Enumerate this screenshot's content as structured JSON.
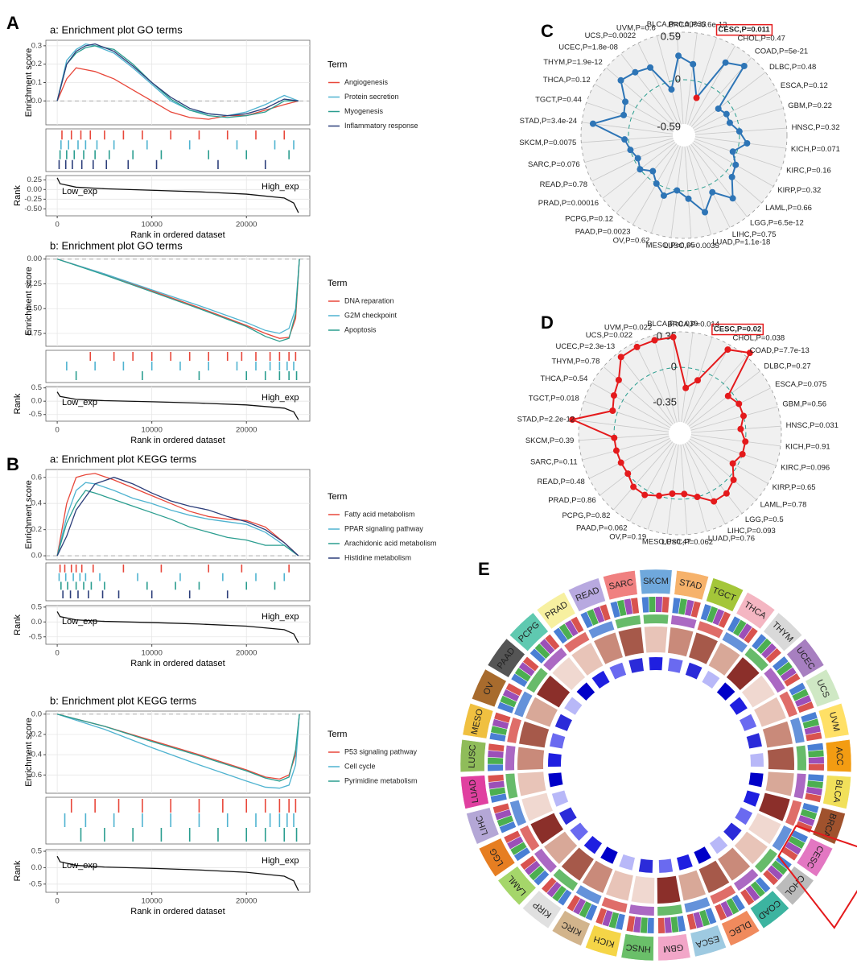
{
  "panels": [
    "A",
    "B",
    "C",
    "D",
    "E"
  ],
  "chart_data": [
    {
      "type": "gsea",
      "title": "a: Enrichment plot GO terms",
      "ylabel": "Enrichment score",
      "xlabel": "Rank in ordered dataset",
      "legend_title": "Term",
      "rank_ylabel": "Rank",
      "low_label": "Low_exp",
      "high_label": "High_exp",
      "xlim": [
        -1200,
        26700
      ],
      "xticks": [
        0,
        10000,
        20000
      ],
      "ylim": [
        -0.13,
        0.33
      ],
      "yticks": [
        {
          "value": 0,
          "label": "0.0"
        },
        0.1,
        0.2,
        0.3
      ],
      "x": [
        0,
        1000,
        2000,
        3000,
        4000,
        6000,
        8000,
        10000,
        12000,
        14000,
        16000,
        18000,
        20000,
        22000,
        24000,
        25500
      ],
      "series": [
        {
          "name": "Angiogenesis",
          "color": "#e8473a",
          "values": [
            0,
            0.12,
            0.18,
            0.17,
            0.16,
            0.12,
            0.06,
            0.0,
            -0.06,
            -0.09,
            -0.1,
            -0.08,
            -0.08,
            -0.05,
            -0.02,
            0
          ],
          "hits": [
            500,
            1500,
            2500,
            3500,
            5000,
            7000,
            9000,
            12000,
            15000,
            18000,
            21000,
            24000
          ]
        },
        {
          "name": "Protein secretion",
          "color": "#4fb3d0",
          "values": [
            0,
            0.22,
            0.28,
            0.31,
            0.3,
            0.26,
            0.18,
            0.09,
            0.0,
            -0.05,
            -0.07,
            -0.08,
            -0.06,
            -0.02,
            0.03,
            0
          ],
          "hits": [
            400,
            1200,
            2200,
            3000,
            4200,
            6000,
            9500,
            14000,
            19000,
            23000,
            25000
          ]
        },
        {
          "name": "Myogenesis",
          "color": "#2a9d8f",
          "values": [
            0,
            0.2,
            0.26,
            0.29,
            0.3,
            0.28,
            0.2,
            0.1,
            0.01,
            -0.05,
            -0.08,
            -0.09,
            -0.08,
            -0.06,
            0.0,
            0
          ],
          "hits": [
            300,
            1000,
            1800,
            2800,
            4000,
            5500,
            8000,
            11000,
            16000,
            20000,
            24500
          ]
        },
        {
          "name": "Inflammatory response",
          "color": "#2c3e7a",
          "values": [
            0,
            0.2,
            0.27,
            0.3,
            0.31,
            0.27,
            0.19,
            0.1,
            0.02,
            -0.04,
            -0.07,
            -0.08,
            -0.07,
            -0.04,
            0.01,
            0
          ],
          "hits": [
            200,
            900,
            1600,
            2600,
            3800,
            5200,
            7500,
            10500,
            17000,
            22000
          ]
        }
      ],
      "rank_x": [
        0,
        300,
        2000,
        5000,
        10000,
        15000,
        20000,
        24000,
        25000,
        25500
      ],
      "rank_values": [
        0.3,
        0.15,
        0.06,
        0.02,
        -0.02,
        -0.06,
        -0.12,
        -0.22,
        -0.35,
        -0.6
      ],
      "rank_ylim": [
        -0.68,
        0.36
      ],
      "rank_yticks": [
        0.25,
        {
          "value": 0,
          "label": "0.00"
        },
        -0.25,
        {
          "value": -0.5,
          "label": "-0.50"
        }
      ]
    },
    {
      "type": "gsea",
      "title": "b: Enrichment plot GO terms",
      "ylabel": "Enrichment score",
      "xlabel": "Rank in ordered dataset",
      "legend_title": "Term",
      "rank_ylabel": "Rank",
      "low_label": "Low_exp",
      "high_label": "High_exp",
      "xlim": [
        -1200,
        26700
      ],
      "xticks": [
        0,
        10000,
        20000
      ],
      "ylim": [
        -0.88,
        0.03
      ],
      "yticks": [
        {
          "value": 0,
          "label": "0.00"
        },
        -0.25,
        {
          "value": -0.5,
          "label": "-0.50"
        },
        -0.75
      ],
      "x": [
        0,
        5000,
        10000,
        15000,
        20000,
        22000,
        23500,
        24500,
        25200,
        25600
      ],
      "series": [
        {
          "name": "DNA reparation",
          "color": "#e8473a",
          "values": [
            0,
            -0.15,
            -0.32,
            -0.49,
            -0.67,
            -0.75,
            -0.8,
            -0.79,
            -0.6,
            0
          ],
          "hits": [
            3500,
            6000,
            8000,
            10000,
            12000,
            14000,
            16000,
            18000,
            19500,
            21000,
            22500,
            23500,
            24500,
            25200
          ]
        },
        {
          "name": "G2M checkpoint",
          "color": "#4fb3d0",
          "values": [
            0,
            -0.15,
            -0.31,
            -0.47,
            -0.64,
            -0.72,
            -0.75,
            -0.7,
            -0.5,
            0
          ],
          "hits": [
            1000,
            4000,
            7000,
            10000,
            13000,
            16000,
            19000,
            21000,
            22500,
            23500,
            24300,
            25000
          ]
        },
        {
          "name": "Apoptosis",
          "color": "#2a9d8f",
          "values": [
            0,
            -0.16,
            -0.33,
            -0.5,
            -0.68,
            -0.78,
            -0.83,
            -0.8,
            -0.55,
            0
          ],
          "hits": [
            2000,
            9000,
            15000,
            20000,
            22000,
            23500,
            24500,
            25300
          ]
        }
      ],
      "rank_x": [
        0,
        300,
        2000,
        5000,
        10000,
        15000,
        20000,
        24000,
        25000,
        25500
      ],
      "rank_values": [
        0.35,
        0.18,
        0.07,
        0.02,
        -0.02,
        -0.07,
        -0.14,
        -0.26,
        -0.4,
        -0.7
      ],
      "rank_ylim": [
        -0.75,
        0.55
      ],
      "rank_yticks": [
        0.5,
        {
          "value": 0,
          "label": "0.0"
        },
        -0.5
      ]
    },
    {
      "type": "gsea",
      "title": "a: Enrichment plot KEGG terms",
      "ylabel": "Enrichment score",
      "xlabel": "Rank in ordered dataset",
      "legend_title": "Term",
      "rank_ylabel": "Rank",
      "low_label": "Low_exp",
      "high_label": "High_exp",
      "xlim": [
        -1200,
        26700
      ],
      "xticks": [
        0,
        10000,
        20000
      ],
      "ylim": [
        -0.03,
        0.66
      ],
      "yticks": [
        {
          "value": 0,
          "label": "0.0"
        },
        0.2,
        0.4,
        0.6
      ],
      "x": [
        0,
        1000,
        2000,
        3000,
        4000,
        6000,
        8000,
        10000,
        12000,
        14000,
        16000,
        18000,
        20000,
        22000,
        24000,
        25500
      ],
      "series": [
        {
          "name": "Fatty acid metabolism",
          "color": "#e8473a",
          "values": [
            0,
            0.4,
            0.6,
            0.62,
            0.63,
            0.58,
            0.52,
            0.46,
            0.4,
            0.34,
            0.3,
            0.28,
            0.27,
            0.22,
            0.1,
            0
          ],
          "hits": [
            300,
            800,
            1500,
            2000,
            2600,
            3800,
            7000,
            11000,
            16000,
            19500,
            24500
          ]
        },
        {
          "name": "PPAR signaling pathway",
          "color": "#4fb3d0",
          "values": [
            0,
            0.3,
            0.5,
            0.56,
            0.55,
            0.5,
            0.44,
            0.4,
            0.35,
            0.31,
            0.28,
            0.26,
            0.24,
            0.18,
            0.08,
            0
          ],
          "hits": [
            200,
            900,
            1700,
            2400,
            3000,
            4500,
            8500,
            13000,
            17500,
            21000,
            24000
          ]
        },
        {
          "name": "Arachidonic acid metabolism",
          "color": "#2a9d8f",
          "values": [
            0,
            0.25,
            0.4,
            0.5,
            0.48,
            0.43,
            0.38,
            0.33,
            0.28,
            0.22,
            0.18,
            0.14,
            0.12,
            0.08,
            0.08,
            0
          ],
          "hits": [
            400,
            1100,
            2000,
            2800,
            3600,
            5000,
            9500,
            12500,
            15000,
            20000,
            23000
          ]
        },
        {
          "name": "Histidine metabolism",
          "color": "#2c3e7a",
          "values": [
            0,
            0.15,
            0.35,
            0.45,
            0.55,
            0.6,
            0.55,
            0.48,
            0.42,
            0.38,
            0.35,
            0.3,
            0.26,
            0.2,
            0.1,
            0
          ],
          "hits": [
            600,
            1400,
            2200,
            3300,
            4800,
            6500,
            10000,
            14000,
            18000
          ]
        }
      ],
      "rank_x": [
        0,
        300,
        2000,
        5000,
        10000,
        15000,
        20000,
        24000,
        25000,
        25500
      ],
      "rank_values": [
        0.35,
        0.18,
        0.07,
        0.02,
        -0.02,
        -0.07,
        -0.14,
        -0.26,
        -0.4,
        -0.7
      ],
      "rank_ylim": [
        -0.75,
        0.55
      ],
      "rank_yticks": [
        0.5,
        {
          "value": 0,
          "label": "0.0"
        },
        -0.5
      ]
    },
    {
      "type": "gsea",
      "title": "b: Enrichment plot KEGG terms",
      "ylabel": "Enrichment score",
      "xlabel": "Rank in ordered dataset",
      "legend_title": "Term",
      "rank_ylabel": "Rank",
      "low_label": "Low_exp",
      "high_label": "High_exp",
      "xlim": [
        -1200,
        26700
      ],
      "xticks": [
        0,
        10000,
        20000
      ],
      "ylim": [
        -0.78,
        0.03
      ],
      "yticks": [
        {
          "value": 0,
          "label": "0.0"
        },
        -0.2,
        -0.4,
        -0.6
      ],
      "x": [
        0,
        5000,
        10000,
        15000,
        20000,
        22000,
        23500,
        24500,
        25200,
        25600
      ],
      "series": [
        {
          "name": "P53 signaling pathway",
          "color": "#e8473a",
          "values": [
            0,
            -0.12,
            -0.26,
            -0.4,
            -0.55,
            -0.62,
            -0.64,
            -0.6,
            -0.4,
            0
          ],
          "hits": [
            1500,
            4000,
            6500,
            9000,
            12000,
            15000,
            17500,
            20000,
            22000,
            23500,
            24500,
            25200
          ]
        },
        {
          "name": "Cell cycle",
          "color": "#4fb3d0",
          "values": [
            0,
            -0.15,
            -0.33,
            -0.5,
            -0.66,
            -0.72,
            -0.73,
            -0.7,
            -0.5,
            0
          ],
          "hits": [
            800,
            3000,
            6000,
            9000,
            12000,
            15000,
            18000,
            21000,
            22500,
            23500,
            24300,
            25000
          ]
        },
        {
          "name": "Pyrimidine metabolism",
          "color": "#2a9d8f",
          "values": [
            0,
            -0.12,
            -0.27,
            -0.41,
            -0.56,
            -0.63,
            -0.66,
            -0.62,
            -0.35,
            0
          ],
          "hits": [
            2500,
            5000,
            8000,
            11000,
            14000,
            17000,
            20000,
            22000,
            24000,
            25300
          ]
        }
      ],
      "rank_x": [
        0,
        300,
        2000,
        5000,
        10000,
        15000,
        20000,
        24000,
        25000,
        25500
      ],
      "rank_values": [
        0.35,
        0.18,
        0.07,
        0.02,
        -0.02,
        -0.07,
        -0.14,
        -0.26,
        -0.4,
        -0.7
      ],
      "rank_ylim": [
        -0.75,
        0.55
      ],
      "rank_yticks": [
        0.5,
        {
          "value": 0,
          "label": "0.0"
        },
        -0.5
      ]
    },
    {
      "type": "radar",
      "color": "#2e75b6",
      "highlight": 2,
      "highlight_color": "#e41a1c",
      "rlim": [
        -0.69,
        0.59
      ],
      "rticks": [
        0.59,
        0,
        -0.59
      ],
      "categories": [
        "BLCA,P=0.00033",
        "BRCA,P=5.6e-13",
        "CESC,P=0.011",
        "CHOL,P=0.47",
        "COAD,P=5e-21",
        "DLBC,P=0.48",
        "ESCA,P=0.12",
        "GBM,P=0.22",
        "HNSC,P=0.32",
        "KICH,P=0.071",
        "KIRC,P=0.16",
        "KIRP,P=0.32",
        "LAML,P=0.66",
        "LGG,P=6.5e-12",
        "LIHC,P=0.75",
        "LUAD,P=1.1e-18",
        "LUSC,P=0.0035",
        "MESO,P=0.65",
        "OV,P=0.62",
        "PAAD,P=0.0023",
        "PCPG,P=0.12",
        "PRAD,P=0.00016",
        "READ,P=0.78",
        "SARC,P=0.076",
        "SKCM,P=0.0075",
        "STAD,P=3.4e-24",
        "TGCT,P=0.44",
        "THCA,P=0.12",
        "THYM,P=1.9e-12",
        "UCEC,P=1.8e-08",
        "UCS,P=0.0022",
        "UVM,P=0.6"
      ],
      "values": [
        0.3,
        0.2,
        -0.2,
        0.35,
        0.45,
        -0.15,
        -0.1,
        -0.1,
        0.0,
        0.1,
        -0.05,
        0.05,
        0.1,
        0.3,
        0.1,
        0.3,
        0.1,
        0.0,
        0.1,
        0.0,
        -0.1,
        0.0,
        -0.05,
        0.0,
        0.05,
        0.45,
        0.1,
        0.15,
        0.35,
        0.3,
        0.25,
        -0.1
      ]
    },
    {
      "type": "radar",
      "color": "#e41a1c",
      "highlight": 2,
      "highlight_color": "#e41a1c",
      "rlim": [
        -0.65,
        0.35
      ],
      "rticks": [
        0.35,
        0,
        -0.35
      ],
      "categories": [
        "BLCA,P=0.039",
        "BRCA,P=0.014",
        "CESC,P=0.02",
        "CHOL,P=0.038",
        "COAD,P=7.7e-13",
        "DLBC,P=0.27",
        "ESCA,P=0.075",
        "GBM,P=0.56",
        "HNSC,P=0.031",
        "KICH,P=0.91",
        "KIRC,P=0.096",
        "KIRP,P=0.65",
        "LAML,P=0.78",
        "LGG,P=0.5",
        "LIHC,P=0.093",
        "LUAD,P=0.76",
        "LUSC,P=0.062",
        "MESO,P=0.47",
        "OV,P=0.19",
        "PAAD,P=0.062",
        "PCPG,P=0.82",
        "PRAD,P=0.86",
        "READ,P=0.48",
        "SARC,P=0.11",
        "SKCM,P=0.39",
        "STAD,P=2.2e-12",
        "TGCT,P=0.018",
        "THCA,P=0.54",
        "THYM,P=0.78",
        "UCEC,P=2.3e-13",
        "UCS,P=0.022",
        "UVM,P=0.022"
      ],
      "values": [
        0.3,
        -0.2,
        -0.1,
        0.3,
        0.4,
        -0.05,
        0.0,
        0.0,
        -0.05,
        0.0,
        0.0,
        -0.05,
        0.05,
        0.1,
        0.1,
        0.0,
        -0.05,
        -0.05,
        0.0,
        0.05,
        0.05,
        0.0,
        0.0,
        0.0,
        0.0,
        0.42,
        0.05,
        0.1,
        0.15,
        0.3,
        0.3,
        0.3
      ]
    },
    {
      "type": "circos",
      "categories": [
        "SKCM",
        "STAD",
        "TGCT",
        "THCA",
        "THYM",
        "UCEC",
        "UCS",
        "UVM",
        "ACC",
        "BLCA",
        "BRCA",
        "CESC",
        "CHOL",
        "COAD",
        "DLBC",
        "ESCA",
        "GBM",
        "HNSC",
        "KICH",
        "KIRC",
        "KIRP",
        "LAML",
        "LGG",
        "LIHC",
        "LUAD",
        "LUSC",
        "MESO",
        "OV",
        "PAAD",
        "PCPG",
        "PRAD",
        "READ",
        "SARC"
      ],
      "colors": [
        "#6fa8dc",
        "#f6b26b",
        "#a4c639",
        "#f4b6c2",
        "#d9d9d9",
        "#a77fc0",
        "#cfe8c4",
        "#ffe066",
        "#f39c12",
        "#f1e05a",
        "#a0522d",
        "#e377c2",
        "#bbbbbb",
        "#3cb4a0",
        "#f08a5d",
        "#9ecae1",
        "#f2a6c8",
        "#6abf69",
        "#f5d547",
        "#d2b48c",
        "#e0e0e0",
        "#a5d66a",
        "#e67e22",
        "#b4a7d6",
        "#e040a0",
        "#8fbc5a",
        "#f0c040",
        "#a86b2d",
        "#555555",
        "#5fc9b0",
        "#f7f0a0",
        "#b8a9e0",
        "#f08080"
      ],
      "highlight": 11,
      "highlight_color": "#e41a1c"
    }
  ]
}
